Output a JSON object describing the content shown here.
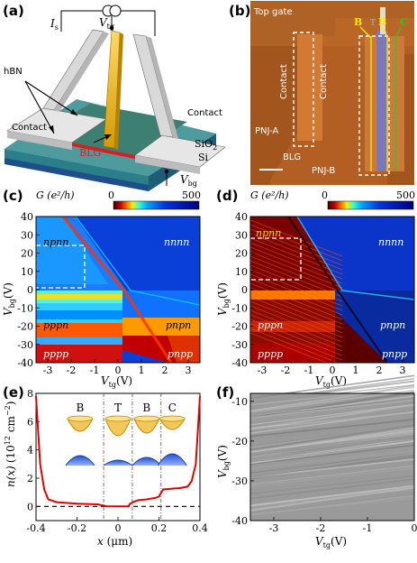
{
  "figure": {
    "panel_labels": [
      "(a)",
      "(b)",
      "(c)",
      "(d)",
      "(e)",
      "(f)"
    ],
    "a": {
      "Is": "I",
      "Is_sub": "s",
      "Vtg": "V",
      "Vtg_sub": "tg",
      "Vbg": "V",
      "Vbg_sub": "bg",
      "hBN": "hBN",
      "contact_left": "Contact",
      "contact_right": "Contact",
      "BLG": "BLG",
      "SiO2": "SiO",
      "SiO2_sub": "2",
      "Si": "Si",
      "colors": {
        "substrate_top": "#5aa6a8",
        "si": "#1e4f8a",
        "contact": "#d9d9d9",
        "gate": "#ffcc00",
        "blg": "#d62020"
      }
    },
    "b": {
      "top_gate": "Top gate",
      "contact1": "Contact",
      "contact2": "Contact",
      "pnja": "PNJ-A",
      "pnjb": "PNJ-B",
      "blg": "BLG",
      "marks": [
        "B",
        "B",
        "C"
      ],
      "mark_colors": [
        "#ffea00",
        "#ffea00",
        "#22cc22"
      ],
      "mark_mid": "T"
    },
    "colorbar": {
      "label": "G (e²/h)",
      "min": "0",
      "max": "500"
    },
    "c": {
      "regions": [
        "npnn",
        "nnnn",
        "pppn",
        "pnpn",
        "pppp",
        "pnpp"
      ],
      "xticks": [
        "-3",
        "-2",
        "-1",
        "0",
        "1",
        "2",
        "3"
      ],
      "yticks": [
        "40",
        "30",
        "20",
        "10",
        "0",
        "-10",
        "-20",
        "-30",
        "-40"
      ],
      "xlabel": "V",
      "xlabel_sub": "tg",
      "xunit": "(V)",
      "ylabel": "V",
      "ylabel_sub": "bg",
      "yunit": "(V)"
    },
    "d": {
      "regions": [
        "npnn",
        "nnnn",
        "pppn",
        "pnpn",
        "pppp",
        "pnpp"
      ],
      "xticks": [
        "-3",
        "-2",
        "-1",
        "0",
        "1",
        "2",
        "3"
      ],
      "yticks": [
        "40",
        "30",
        "20",
        "10",
        "0",
        "-10",
        "-20",
        "-30",
        "-40"
      ]
    },
    "e": {
      "xticks": [
        "-0.4",
        "-0.2",
        "0",
        "0.2",
        "0.4"
      ],
      "yticks": [
        "8",
        "6",
        "4",
        "2",
        "0"
      ],
      "xlabel": "x (μm)",
      "ylabel_main": "n(x)",
      "ylabel_unit": "(10",
      "ylabel_exp": "12",
      "ylabel_tail": " cm",
      "ylabel_exp2": "−2",
      "ylabel_close": ")",
      "segments": [
        "B",
        "T",
        "B",
        "C"
      ]
    },
    "f": {
      "xticks": [
        "-3",
        "-2",
        "-1",
        "0"
      ],
      "yticks": [
        "-10",
        "-20",
        "-30",
        "-40"
      ],
      "xlabel": "V",
      "xlabel_sub": "tg",
      "xunit": "(V)",
      "ylabel": "V",
      "ylabel_sub": "bg",
      "yunit": "(V)"
    }
  },
  "chart_data": [
    {
      "type": "line",
      "panel": "e",
      "x": [
        -0.4,
        -0.38,
        -0.36,
        -0.34,
        -0.3,
        -0.2,
        -0.1,
        -0.07,
        -0.05,
        0.0,
        0.05,
        0.06,
        0.08,
        0.1,
        0.14,
        0.16,
        0.18,
        0.2,
        0.22,
        0.3,
        0.34,
        0.36,
        0.38,
        0.4
      ],
      "series": [
        {
          "values": [
            7.8,
            3.0,
            1.2,
            0.5,
            0.3,
            0.2,
            0.15,
            0.05,
            0.0,
            0.0,
            0.0,
            0.2,
            0.35,
            0.45,
            0.5,
            0.55,
            0.6,
            0.7,
            1.2,
            1.3,
            1.4,
            1.8,
            3.0,
            7.8
          ]
        }
      ],
      "xlabel": "x (μm)",
      "ylabel": "n(x) (10^12 cm^-2)",
      "xlim": [
        -0.4,
        0.4
      ],
      "ylim": [
        -1,
        8
      ],
      "reference_line_y": 0,
      "dividers_x": [
        -0.07,
        0.07,
        0.21
      ]
    }
  ]
}
